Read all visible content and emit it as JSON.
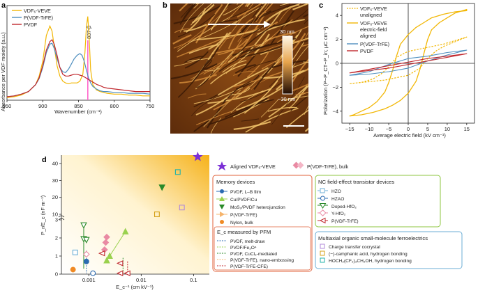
{
  "colors": {
    "veve": "#f2b705",
    "pvdf_trfe": "#4f8fbf",
    "pvdf": "#c0272d",
    "marker_line": "#ff66cc",
    "star": "#7b2fd6",
    "pink": "#e98aa3",
    "memory_box": "#e0603a",
    "nc_box": "#8cc63f",
    "multi_box": "#6baed6",
    "afm_dark": "#3a1a06",
    "afm_light": "#f3c56b"
  },
  "panel_labels": {
    "a": "a",
    "b": "b",
    "c": "c",
    "d": "d"
  },
  "panel_a": {
    "ylabel": "Absorbance per VDF moiety (a.u.)",
    "xlabel": "Wavenumber (cm⁻¹)",
    "peak_label": "837-β",
    "legend": [
      "VDF₆-VEVE",
      "P(VDF-TrFE)",
      "PVDF"
    ],
    "chart_data": {
      "type": "line",
      "xlim": [
        950,
        750
      ],
      "xticks": [
        950,
        900,
        850,
        800,
        750
      ],
      "marker_x": 837,
      "series": [
        {
          "name": "VDF₆-VEVE",
          "x": [
            950,
            940,
            930,
            920,
            910,
            905,
            900,
            895,
            890,
            887,
            884,
            880,
            876,
            872,
            868,
            864,
            860,
            856,
            852,
            848,
            844,
            841,
            839,
            837,
            835,
            833,
            830,
            825,
            820,
            815,
            810,
            800,
            790,
            780,
            770,
            760,
            750
          ],
          "y": [
            0.03,
            0.04,
            0.06,
            0.1,
            0.18,
            0.28,
            0.45,
            0.75,
            0.86,
            0.8,
            0.62,
            0.4,
            0.28,
            0.22,
            0.2,
            0.19,
            0.2,
            0.2,
            0.2,
            0.22,
            0.3,
            0.55,
            0.85,
            0.97,
            0.7,
            0.35,
            0.18,
            0.12,
            0.1,
            0.09,
            0.08,
            0.07,
            0.07,
            0.06,
            0.06,
            0.05,
            0.05
          ]
        },
        {
          "name": "P(VDF-TrFE)",
          "x": [
            950,
            940,
            930,
            920,
            910,
            905,
            900,
            895,
            890,
            887,
            884,
            880,
            876,
            872,
            868,
            864,
            860,
            856,
            852,
            848,
            845,
            842,
            839,
            836,
            833,
            830,
            825,
            820,
            815,
            810,
            800,
            790,
            780,
            770,
            760,
            750
          ],
          "y": [
            0.04,
            0.05,
            0.07,
            0.1,
            0.18,
            0.25,
            0.38,
            0.55,
            0.65,
            0.66,
            0.6,
            0.48,
            0.38,
            0.33,
            0.32,
            0.36,
            0.42,
            0.48,
            0.52,
            0.54,
            0.52,
            0.45,
            0.35,
            0.26,
            0.2,
            0.16,
            0.13,
            0.11,
            0.1,
            0.1,
            0.09,
            0.09,
            0.08,
            0.08,
            0.08,
            0.07
          ]
        },
        {
          "name": "PVDF",
          "x": [
            950,
            940,
            930,
            920,
            910,
            905,
            900,
            895,
            890,
            887,
            884,
            880,
            876,
            872,
            868,
            864,
            860,
            856,
            852,
            848,
            844,
            840,
            836,
            832,
            828,
            824,
            820,
            815,
            810,
            800,
            790,
            780,
            770,
            760,
            750
          ],
          "y": [
            0.04,
            0.05,
            0.07,
            0.1,
            0.18,
            0.26,
            0.4,
            0.58,
            0.68,
            0.7,
            0.65,
            0.52,
            0.38,
            0.3,
            0.28,
            0.28,
            0.29,
            0.3,
            0.3,
            0.29,
            0.28,
            0.26,
            0.24,
            0.22,
            0.2,
            0.18,
            0.17,
            0.15,
            0.14,
            0.13,
            0.12,
            0.11,
            0.1,
            0.1,
            0.1
          ]
        }
      ]
    }
  },
  "panel_b": {
    "scale_top": "30 nm",
    "scale_bottom": "−30 nm"
  },
  "panel_c": {
    "ylabel": "Polarization (P−P_CT−P_in; μC cm⁻²)",
    "xlabel": "Average electric field (kV cm⁻¹)",
    "legend": [
      "VDF₆-VEVE",
      "unaligned",
      "VDF₆-VEVE",
      "electric-field",
      "aligned",
      "P(VDF-TrFE)",
      "PVDF"
    ],
    "chart_data": {
      "type": "line",
      "xlim": [
        -17,
        17
      ],
      "ylim": [
        -5,
        5
      ],
      "xticks": [
        -15,
        -10,
        -5,
        0,
        5,
        10,
        15
      ],
      "yticks": [
        4,
        2,
        0,
        -2,
        -4
      ],
      "series": [
        {
          "name": "VDF₆-VEVE electric-field aligned",
          "x": [
            -15,
            -12,
            -9,
            -6,
            -4,
            -2,
            0,
            2,
            3,
            4,
            5,
            6,
            8,
            10,
            12,
            14,
            15,
            15,
            12,
            9,
            6,
            4,
            2,
            0,
            -2,
            -3,
            -4,
            -5,
            -6,
            -8,
            -10,
            -12,
            -14,
            -15
          ],
          "y": [
            -4.4,
            -4.3,
            -4.1,
            -3.8,
            -3.5,
            -3.1,
            -2.5,
            -1.5,
            -0.5,
            0.8,
            2.0,
            2.8,
            3.4,
            3.8,
            4.2,
            4.4,
            4.5,
            4.4,
            4.3,
            4.1,
            3.8,
            3.4,
            3.0,
            2.4,
            1.6,
            0.6,
            -0.6,
            -1.6,
            -2.4,
            -3.2,
            -3.7,
            -4.0,
            -4.3,
            -4.4
          ]
        },
        {
          "name": "VDF₆-VEVE unaligned",
          "x": [
            -15,
            -12,
            -9,
            -6,
            -3,
            0,
            3,
            5,
            7,
            9,
            12,
            15,
            15,
            12,
            9,
            6,
            3,
            0,
            -3,
            -5,
            -7,
            -9,
            -12,
            -15
          ],
          "y": [
            -1.7,
            -1.6,
            -1.5,
            -1.4,
            -1.2,
            -1.0,
            -0.4,
            0.4,
            1.0,
            1.4,
            1.8,
            2.2,
            2.2,
            1.9,
            1.6,
            1.4,
            1.2,
            1.0,
            0.5,
            -0.3,
            -0.9,
            -1.3,
            -1.6,
            -1.7
          ]
        },
        {
          "name": "P(VDF-TrFE)",
          "x": [
            -15,
            -10,
            -5,
            0,
            5,
            10,
            15,
            15,
            10,
            5,
            0,
            -5,
            -10,
            -15
          ],
          "y": [
            -1.0,
            -0.9,
            -0.7,
            -0.4,
            0.2,
            0.7,
            1.1,
            1.1,
            0.9,
            0.6,
            0.4,
            -0.1,
            -0.7,
            -1.0
          ]
        },
        {
          "name": "PVDF",
          "x": [
            -15,
            -10,
            -5,
            0,
            5,
            10,
            15,
            15,
            10,
            5,
            0,
            -5,
            -10,
            -15
          ],
          "y": [
            -0.8,
            -0.6,
            -0.4,
            -0.1,
            0.2,
            0.5,
            0.8,
            0.8,
            0.6,
            0.4,
            0.1,
            -0.2,
            -0.5,
            -0.8
          ]
        }
      ]
    }
  },
  "panel_d": {
    "ylabel": "P_r/E_c (nF m⁻¹)",
    "xlabel": "E_c⁻¹ (cm kV⁻¹)",
    "top_legend": {
      "star": "Aligned VDF₆-VEVE",
      "diamond": "P(VDF-TrFE), bulk"
    },
    "memory_title": "Memory devices",
    "memory_items": [
      "PVDF, L–B film",
      "Cu/PVDF/Cu",
      "MoS₂/PVDF heterojunction",
      "P(VDF-TrFE)",
      "Nylon, bulk"
    ],
    "pfm_title": "E_c measured by PFM",
    "pfm_items": [
      "PVDF, melt-draw",
      "PVDF/Fe₃O⁴",
      "PVDF, CuCl₂-mediated",
      "P(VDF-TrFE), nano-embossing",
      "P(VDF-TrFE-CFE)"
    ],
    "nc_title": "NC field-effect transistor devices",
    "nc_items": [
      "HZO",
      "HZAO",
      "Doped-HfO₂",
      "Y-HfO₂",
      "P(VDF-TrFE)"
    ],
    "multi_title": "Multiaxial organic small-molecule ferroelectrics",
    "multi_items": [
      "Charge transfer cocrystal",
      "(−)-camphanic acid, hydrogen bonding",
      "HOCH₂(CF₂)₃CH₂OH, hydrogen bonding"
    ],
    "chart_data": {
      "type": "scatter",
      "xscale": "log",
      "xticks": [
        0.001,
        0.01,
        0.1
      ],
      "ylim_lower": [
        0,
        3
      ],
      "ylim_upper": [
        10,
        45
      ],
      "yticks": [
        0,
        1,
        2,
        3,
        10,
        20,
        30,
        40
      ],
      "points": [
        {
          "label": "Aligned VDF₆-VEVE",
          "x": 0.12,
          "y": 44
        },
        {
          "label": "Charge transfer cocrystal",
          "x": 0.06,
          "y": 14
        },
        {
          "label": "HOCH₂(CF₂)₃CH₂OH, hydrogen bonding",
          "x": 0.05,
          "y": 35
        },
        {
          "label": "(−)-camphanic acid, hydrogen bonding",
          "x": 0.02,
          "y": 10
        },
        {
          "label": "MoS₂/PVDF heterojunction",
          "x": 0.025,
          "y": 26
        },
        {
          "label": "PVDF, L–B film",
          "x": 0.0009,
          "y": 0.7
        },
        {
          "label": "Nylon, bulk",
          "x": 0.0005,
          "y": 0.25
        },
        {
          "label": "HZO",
          "x": 0.00055,
          "y": 1.2
        },
        {
          "label": "Doped-HfO₂",
          "x": 0.0008,
          "y": 3.6
        },
        {
          "label": "Doped-HfO₂",
          "x": 0.0008,
          "y": 1.95
        },
        {
          "label": "Doped-HfO₂",
          "x": 0.0009,
          "y": 1.9
        },
        {
          "label": "Y-HfO₂",
          "x": 0.0009,
          "y": 1.1
        },
        {
          "label": "P(VDF-TrFE), bulk",
          "x": 0.0022,
          "y": 2.05
        },
        {
          "label": "P(VDF-TrFE), bulk",
          "x": 0.0021,
          "y": 1.75
        },
        {
          "label": "P(VDF-TrFE), bulk",
          "x": 0.002,
          "y": 1.35
        },
        {
          "label": "P(VDF-TrFE)",
          "x": 0.0018,
          "y": 1.15
        },
        {
          "label": "Cu/PVDF/Cu",
          "x": 0.0022,
          "y": 0.75
        },
        {
          "label": "Cu/PVDF/Cu",
          "x": 0.0025,
          "y": 1.0
        },
        {
          "label": "Cu/PVDF/Cu",
          "x": 0.005,
          "y": 2.35
        },
        {
          "label": "P(VDF-TrFE)",
          "x": 0.004,
          "y": 0.6
        },
        {
          "label": "HZAO",
          "x": 0.0012,
          "y": 0.05
        },
        {
          "label": "P(VDF-TrFE)",
          "x": 0.004,
          "y": 0.05
        },
        {
          "label": "P(VDF-TrFE)",
          "x": 0.0055,
          "y": 0.05
        }
      ]
    }
  }
}
